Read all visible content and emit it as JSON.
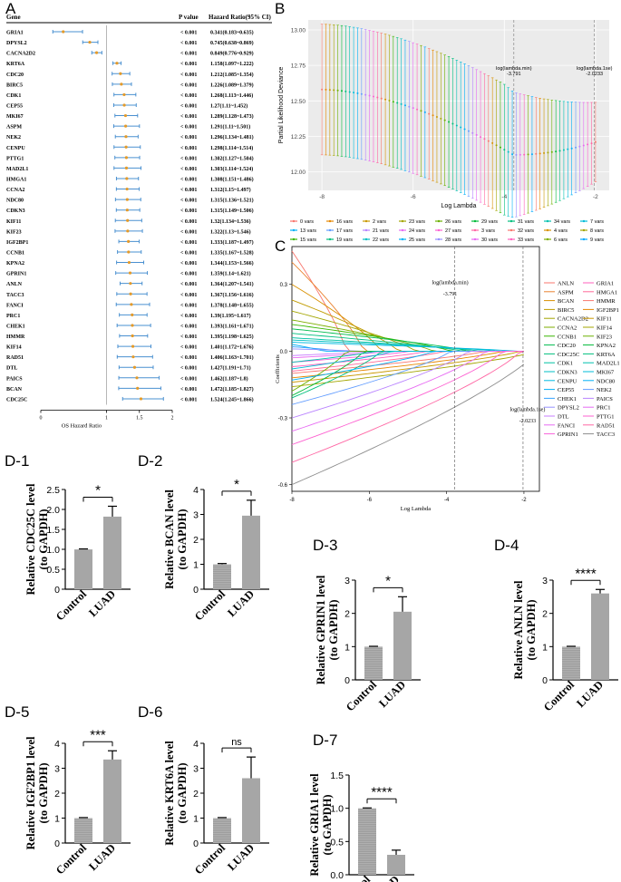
{
  "panel_labels": {
    "A": "A",
    "B": "B",
    "C": "C",
    "D1": "D-1",
    "D2": "D-2",
    "D3": "D-3",
    "D4": "D-4",
    "D5": "D-5",
    "D6": "D-6",
    "D7": "D-7"
  },
  "forest": {
    "header_gene": "Gene",
    "header_p": "P value",
    "header_hr": "Hazard Ratio(95% CI)",
    "xlabel": "OS Hazard Ratio",
    "xticks": [
      "0",
      "1",
      "1.5",
      "2"
    ],
    "rows": [
      {
        "gene": "GRIA1",
        "p": "< 0.001",
        "hr": "0.341(0.183~0.635)",
        "v": 0.341,
        "lo": 0.183,
        "hi": 0.635
      },
      {
        "gene": "DPYSL2",
        "p": "< 0.001",
        "hr": "0.745(0.638~0.869)",
        "v": 0.745,
        "lo": 0.638,
        "hi": 0.869
      },
      {
        "gene": "CACNA2D2",
        "p": "< 0.001",
        "hr": "0.849(0.776~0.929)",
        "v": 0.849,
        "lo": 0.776,
        "hi": 0.929
      },
      {
        "gene": "KRT6A",
        "p": "< 0.001",
        "hr": "1.158(1.097~1.222)",
        "v": 1.158,
        "lo": 1.097,
        "hi": 1.222
      },
      {
        "gene": "CDC20",
        "p": "< 0.001",
        "hr": "1.212(1.085~1.354)",
        "v": 1.212,
        "lo": 1.085,
        "hi": 1.354
      },
      {
        "gene": "BIRC5",
        "p": "< 0.001",
        "hr": "1.226(1.089~1.379)",
        "v": 1.226,
        "lo": 1.089,
        "hi": 1.379
      },
      {
        "gene": "CDK1",
        "p": "< 0.001",
        "hr": "1.268(1.113~1.446)",
        "v": 1.268,
        "lo": 1.113,
        "hi": 1.446
      },
      {
        "gene": "CEP55",
        "p": "< 0.001",
        "hr": "1.27(1.11~1.452)",
        "v": 1.27,
        "lo": 1.11,
        "hi": 1.452
      },
      {
        "gene": "MKI67",
        "p": "< 0.001",
        "hr": "1.289(1.128~1.473)",
        "v": 1.289,
        "lo": 1.128,
        "hi": 1.473
      },
      {
        "gene": "ASPM",
        "p": "< 0.001",
        "hr": "1.291(1.11~1.501)",
        "v": 1.291,
        "lo": 1.11,
        "hi": 1.501
      },
      {
        "gene": "NEK2",
        "p": "< 0.001",
        "hr": "1.296(1.134~1.481)",
        "v": 1.296,
        "lo": 1.134,
        "hi": 1.481
      },
      {
        "gene": "CENPU",
        "p": "< 0.001",
        "hr": "1.298(1.114~1.514)",
        "v": 1.298,
        "lo": 1.114,
        "hi": 1.514
      },
      {
        "gene": "PTTG1",
        "p": "< 0.001",
        "hr": "1.302(1.127~1.504)",
        "v": 1.302,
        "lo": 1.127,
        "hi": 1.504
      },
      {
        "gene": "MAD2L1",
        "p": "< 0.001",
        "hr": "1.303(1.114~1.524)",
        "v": 1.303,
        "lo": 1.114,
        "hi": 1.524
      },
      {
        "gene": "HMGA1",
        "p": "< 0.001",
        "hr": "1.308(1.151~1.486)",
        "v": 1.308,
        "lo": 1.151,
        "hi": 1.486
      },
      {
        "gene": "CCNA2",
        "p": "< 0.001",
        "hr": "1.312(1.15~1.497)",
        "v": 1.312,
        "lo": 1.15,
        "hi": 1.497
      },
      {
        "gene": "NDC80",
        "p": "< 0.001",
        "hr": "1.315(1.136~1.521)",
        "v": 1.315,
        "lo": 1.136,
        "hi": 1.521
      },
      {
        "gene": "CDKN3",
        "p": "< 0.001",
        "hr": "1.315(1.149~1.506)",
        "v": 1.315,
        "lo": 1.149,
        "hi": 1.506
      },
      {
        "gene": "KIF11",
        "p": "< 0.001",
        "hr": "1.32(1.134~1.536)",
        "v": 1.32,
        "lo": 1.134,
        "hi": 1.536
      },
      {
        "gene": "KIF23",
        "p": "< 0.001",
        "hr": "1.322(1.13~1.546)",
        "v": 1.322,
        "lo": 1.13,
        "hi": 1.546
      },
      {
        "gene": "IGF2BP1",
        "p": "< 0.001",
        "hr": "1.333(1.187~1.497)",
        "v": 1.333,
        "lo": 1.187,
        "hi": 1.497
      },
      {
        "gene": "CCNB1",
        "p": "< 0.001",
        "hr": "1.335(1.167~1.528)",
        "v": 1.335,
        "lo": 1.167,
        "hi": 1.528
      },
      {
        "gene": "KPNA2",
        "p": "< 0.001",
        "hr": "1.344(1.153~1.566)",
        "v": 1.344,
        "lo": 1.153,
        "hi": 1.566
      },
      {
        "gene": "GPRIN1",
        "p": "< 0.001",
        "hr": "1.359(1.14~1.621)",
        "v": 1.359,
        "lo": 1.14,
        "hi": 1.621
      },
      {
        "gene": "ANLN",
        "p": "< 0.001",
        "hr": "1.364(1.207~1.541)",
        "v": 1.364,
        "lo": 1.207,
        "hi": 1.541
      },
      {
        "gene": "TACC3",
        "p": "< 0.001",
        "hr": "1.367(1.156~1.616)",
        "v": 1.367,
        "lo": 1.156,
        "hi": 1.616
      },
      {
        "gene": "FANCI",
        "p": "< 0.001",
        "hr": "1.378(1.148~1.655)",
        "v": 1.378,
        "lo": 1.148,
        "hi": 1.655
      },
      {
        "gene": "PRC1",
        "p": "< 0.001",
        "hr": "1.39(1.195~1.617)",
        "v": 1.39,
        "lo": 1.195,
        "hi": 1.617
      },
      {
        "gene": "CHEK1",
        "p": "< 0.001",
        "hr": "1.393(1.161~1.671)",
        "v": 1.393,
        "lo": 1.161,
        "hi": 1.671
      },
      {
        "gene": "HMMR",
        "p": "< 0.001",
        "hr": "1.395(1.198~1.625)",
        "v": 1.395,
        "lo": 1.198,
        "hi": 1.625
      },
      {
        "gene": "KIF14",
        "p": "< 0.001",
        "hr": "1.401(1.172~1.676)",
        "v": 1.401,
        "lo": 1.172,
        "hi": 1.676
      },
      {
        "gene": "RAD51",
        "p": "< 0.001",
        "hr": "1.406(1.163~1.701)",
        "v": 1.406,
        "lo": 1.163,
        "hi": 1.701
      },
      {
        "gene": "DTL",
        "p": "< 0.001",
        "hr": "1.427(1.191~1.71)",
        "v": 1.427,
        "lo": 1.191,
        "hi": 1.71
      },
      {
        "gene": "PAICS",
        "p": "< 0.001",
        "hr": "1.462(1.187~1.8)",
        "v": 1.462,
        "lo": 1.187,
        "hi": 1.8
      },
      {
        "gene": "BCAN",
        "p": "< 0.001",
        "hr": "1.472(1.185~1.827)",
        "v": 1.472,
        "lo": 1.185,
        "hi": 1.827
      },
      {
        "gene": "CDC25C",
        "p": "< 0.001",
        "hr": "1.524(1.245~1.866)",
        "v": 1.524,
        "lo": 1.245,
        "hi": 1.866
      }
    ],
    "colors": {
      "ci": "#4a90d0",
      "point": "#e39a2a",
      "ref": "#999999"
    }
  },
  "cv": {
    "ylabel": "Partial Likelihood Deviance",
    "xlabel": "Log Lambda",
    "yticks": [
      "12.00",
      "12.25",
      "12.50",
      "12.75",
      "13.00"
    ],
    "xticks": [
      "-8",
      "-6",
      "-4",
      "-2"
    ],
    "min_label": "log(lambda.min)",
    "min_value": "-3.791",
    "se_label": "log(lambda.1se)",
    "se_value": "-2.0233",
    "legend": [
      "0 vars",
      "16 vars",
      "2 vars",
      "23 vars",
      "26 vars",
      "29 vars",
      "31 vars",
      "34 vars",
      "7 vars",
      "13 vars",
      "17 vars",
      "21 vars",
      "24 vars",
      "27 vars",
      "3 vars",
      "32 vars",
      "4 vars",
      "8 vars",
      "15 vars",
      "19 vars",
      "22 vars",
      "25 vars",
      "28 vars",
      "30 vars",
      "33 vars",
      "6 vars",
      "9 vars"
    ],
    "legend_colors": [
      "#f8766d",
      "#e58700",
      "#c99800",
      "#a3a500",
      "#6bb100",
      "#00ba38",
      "#00bf7d",
      "#00c0af",
      "#00bcd8",
      "#00b0f6",
      "#619cff",
      "#b983ff",
      "#e76bf3",
      "#fd61d1",
      "#ff67a4",
      "#f8766d",
      "#d89000",
      "#a3a500",
      "#39b600",
      "#00bf7d",
      "#00bfc4",
      "#00b0f6",
      "#9590ff",
      "#e76bf3",
      "#ff62bc",
      "#7cae00",
      "#00a9ff"
    ]
  },
  "lasso": {
    "ylabel": "Coefficients",
    "xlabel": "Log Lambda",
    "yticks": [
      "-0.6",
      "-0.3",
      "0.0",
      "0.3"
    ],
    "xticks": [
      "-8",
      "-6",
      "-4",
      "-2"
    ],
    "min_label": "log(lambda.min)",
    "min_value": "-3.791",
    "se_label": "log(lambda.1se)",
    "se_value": "-2.0233",
    "legend_col1": [
      "ANLN",
      "ASPM",
      "BCAN",
      "BIRC5",
      "CACNA2D2",
      "CCNA2",
      "CCNB1",
      "CDC20",
      "CDC25C",
      "CDK1",
      "CDKN3",
      "CENPU",
      "CEP55",
      "CHEK1",
      "DPYSL2",
      "DTL",
      "FANCI",
      "GPRIN1"
    ],
    "legend_col2": [
      "GRIA1",
      "HMGA1",
      "HMMR",
      "IGF2BP1",
      "KIF11",
      "KIF14",
      "KIF23",
      "KPNA2",
      "KRT6A",
      "MAD2L1",
      "MKI67",
      "NDC80",
      "NEK2",
      "PAICS",
      "PRC1",
      "PTTG1",
      "RAD51",
      "TACC3"
    ],
    "colors": [
      "#f8766d",
      "#ea8331",
      "#d89000",
      "#c09b00",
      "#a3a500",
      "#7cae00",
      "#39b600",
      "#00bb4e",
      "#00bf7d",
      "#00c1a3",
      "#00bfc4",
      "#00bae0",
      "#00b0f6",
      "#35a2ff",
      "#9590ff",
      "#c77cff",
      "#e76bf3",
      "#fa62db"
    ],
    "colors2": [
      "#ff62bc",
      "#ff6a98",
      "#f8766d",
      "#e58700",
      "#c99800",
      "#a3a500",
      "#6bb100",
      "#00ba38",
      "#00bf7d",
      "#00c0af",
      "#00bcd8",
      "#00b0f6",
      "#619cff",
      "#b983ff",
      "#e76bf3",
      "#fd61d1",
      "#ff67a4",
      "#8d8d8d"
    ]
  },
  "chart_data": [
    {
      "type": "bar",
      "panel": "D-1",
      "categories": [
        "Control",
        "LUAD"
      ],
      "values": [
        1.0,
        1.82
      ],
      "errors": [
        0.01,
        0.26
      ],
      "ylabel": "Relative CDC25C level (to GAPDH)",
      "ylim": [
        0,
        2.5
      ],
      "yticks": [
        "0",
        "0.5",
        "1.0",
        "1.5",
        "2.0",
        "2.5"
      ],
      "sig": "*"
    },
    {
      "type": "bar",
      "panel": "D-2",
      "categories": [
        "Control",
        "LUAD"
      ],
      "values": [
        1.0,
        2.95
      ],
      "errors": [
        0.03,
        0.62
      ],
      "ylabel": "Relative BCAN level (to GAPDH)",
      "ylim": [
        0,
        4
      ],
      "yticks": [
        "0",
        "1",
        "2",
        "3",
        "4"
      ],
      "sig": "*"
    },
    {
      "type": "bar",
      "panel": "D-3",
      "categories": [
        "Control",
        "LUAD"
      ],
      "values": [
        1.0,
        2.05
      ],
      "errors": [
        0.01,
        0.45
      ],
      "ylabel": "Relative GPRIN1 level (to GAPDH)",
      "ylim": [
        0,
        3
      ],
      "yticks": [
        "0",
        "1",
        "2",
        "3"
      ],
      "sig": "*"
    },
    {
      "type": "bar",
      "panel": "D-4",
      "categories": [
        "Control",
        "LUAD"
      ],
      "values": [
        1.0,
        2.6
      ],
      "errors": [
        0.01,
        0.12
      ],
      "ylabel": "Relative ANLN level (to GAPDH)",
      "ylim": [
        0,
        3
      ],
      "yticks": [
        "0",
        "1",
        "2",
        "3"
      ],
      "sig": "****"
    },
    {
      "type": "bar",
      "panel": "D-5",
      "categories": [
        "Control",
        "LUAD"
      ],
      "values": [
        1.0,
        3.35
      ],
      "errors": [
        0.02,
        0.35
      ],
      "ylabel": "Relative IGF2BP1 level (to GAPDH)",
      "ylim": [
        0,
        4
      ],
      "yticks": [
        "0",
        "1",
        "2",
        "3",
        "4"
      ],
      "sig": "***"
    },
    {
      "type": "bar",
      "panel": "D-6",
      "categories": [
        "Control",
        "LUAD"
      ],
      "values": [
        1.0,
        2.6
      ],
      "errors": [
        0.02,
        0.85
      ],
      "ylabel": "Relative KRT6A level (to GAPDH)",
      "ylim": [
        0,
        4
      ],
      "yticks": [
        "0",
        "1",
        "2",
        "3",
        "4"
      ],
      "sig": "ns"
    },
    {
      "type": "bar",
      "panel": "D-7",
      "categories": [
        "Control",
        "LUAD"
      ],
      "values": [
        1.0,
        0.3
      ],
      "errors": [
        0.005,
        0.07
      ],
      "ylabel": "Relative GRIA1 level (to GAPDH)",
      "ylim": [
        0,
        1.5
      ],
      "yticks": [
        "0.0",
        "0.5",
        "1.0",
        "1.5"
      ],
      "sig": "****"
    }
  ]
}
